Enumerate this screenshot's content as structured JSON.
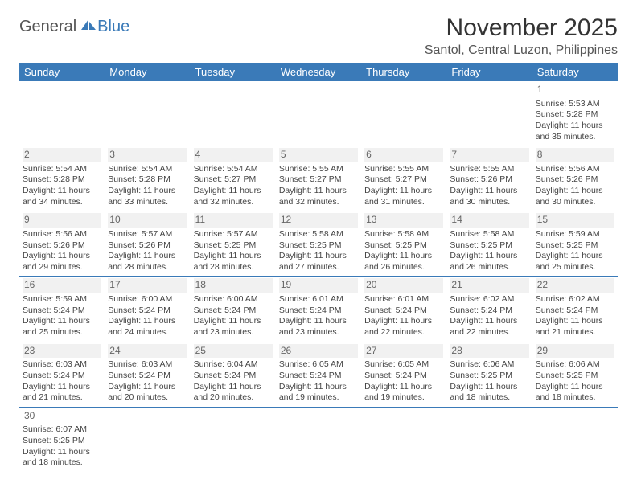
{
  "logo": {
    "general": "General",
    "blue": "Blue"
  },
  "title": "November 2025",
  "location": "Santol, Central Luzon, Philippines",
  "colors": {
    "header_bg": "#3a7ab8",
    "header_fg": "#ffffff",
    "text": "#444444",
    "daybg": "#f1f1f1"
  },
  "weekdays": [
    "Sunday",
    "Monday",
    "Tuesday",
    "Wednesday",
    "Thursday",
    "Friday",
    "Saturday"
  ],
  "weeks": [
    [
      null,
      null,
      null,
      null,
      null,
      null,
      {
        "n": "1",
        "sr": "Sunrise: 5:53 AM",
        "ss": "Sunset: 5:28 PM",
        "dl1": "Daylight: 11 hours",
        "dl2": "and 35 minutes.",
        "nobg": true
      }
    ],
    [
      {
        "n": "2",
        "sr": "Sunrise: 5:54 AM",
        "ss": "Sunset: 5:28 PM",
        "dl1": "Daylight: 11 hours",
        "dl2": "and 34 minutes."
      },
      {
        "n": "3",
        "sr": "Sunrise: 5:54 AM",
        "ss": "Sunset: 5:28 PM",
        "dl1": "Daylight: 11 hours",
        "dl2": "and 33 minutes."
      },
      {
        "n": "4",
        "sr": "Sunrise: 5:54 AM",
        "ss": "Sunset: 5:27 PM",
        "dl1": "Daylight: 11 hours",
        "dl2": "and 32 minutes."
      },
      {
        "n": "5",
        "sr": "Sunrise: 5:55 AM",
        "ss": "Sunset: 5:27 PM",
        "dl1": "Daylight: 11 hours",
        "dl2": "and 32 minutes."
      },
      {
        "n": "6",
        "sr": "Sunrise: 5:55 AM",
        "ss": "Sunset: 5:27 PM",
        "dl1": "Daylight: 11 hours",
        "dl2": "and 31 minutes."
      },
      {
        "n": "7",
        "sr": "Sunrise: 5:55 AM",
        "ss": "Sunset: 5:26 PM",
        "dl1": "Daylight: 11 hours",
        "dl2": "and 30 minutes."
      },
      {
        "n": "8",
        "sr": "Sunrise: 5:56 AM",
        "ss": "Sunset: 5:26 PM",
        "dl1": "Daylight: 11 hours",
        "dl2": "and 30 minutes."
      }
    ],
    [
      {
        "n": "9",
        "sr": "Sunrise: 5:56 AM",
        "ss": "Sunset: 5:26 PM",
        "dl1": "Daylight: 11 hours",
        "dl2": "and 29 minutes."
      },
      {
        "n": "10",
        "sr": "Sunrise: 5:57 AM",
        "ss": "Sunset: 5:26 PM",
        "dl1": "Daylight: 11 hours",
        "dl2": "and 28 minutes."
      },
      {
        "n": "11",
        "sr": "Sunrise: 5:57 AM",
        "ss": "Sunset: 5:25 PM",
        "dl1": "Daylight: 11 hours",
        "dl2": "and 28 minutes."
      },
      {
        "n": "12",
        "sr": "Sunrise: 5:58 AM",
        "ss": "Sunset: 5:25 PM",
        "dl1": "Daylight: 11 hours",
        "dl2": "and 27 minutes."
      },
      {
        "n": "13",
        "sr": "Sunrise: 5:58 AM",
        "ss": "Sunset: 5:25 PM",
        "dl1": "Daylight: 11 hours",
        "dl2": "and 26 minutes."
      },
      {
        "n": "14",
        "sr": "Sunrise: 5:58 AM",
        "ss": "Sunset: 5:25 PM",
        "dl1": "Daylight: 11 hours",
        "dl2": "and 26 minutes."
      },
      {
        "n": "15",
        "sr": "Sunrise: 5:59 AM",
        "ss": "Sunset: 5:25 PM",
        "dl1": "Daylight: 11 hours",
        "dl2": "and 25 minutes."
      }
    ],
    [
      {
        "n": "16",
        "sr": "Sunrise: 5:59 AM",
        "ss": "Sunset: 5:24 PM",
        "dl1": "Daylight: 11 hours",
        "dl2": "and 25 minutes."
      },
      {
        "n": "17",
        "sr": "Sunrise: 6:00 AM",
        "ss": "Sunset: 5:24 PM",
        "dl1": "Daylight: 11 hours",
        "dl2": "and 24 minutes."
      },
      {
        "n": "18",
        "sr": "Sunrise: 6:00 AM",
        "ss": "Sunset: 5:24 PM",
        "dl1": "Daylight: 11 hours",
        "dl2": "and 23 minutes."
      },
      {
        "n": "19",
        "sr": "Sunrise: 6:01 AM",
        "ss": "Sunset: 5:24 PM",
        "dl1": "Daylight: 11 hours",
        "dl2": "and 23 minutes."
      },
      {
        "n": "20",
        "sr": "Sunrise: 6:01 AM",
        "ss": "Sunset: 5:24 PM",
        "dl1": "Daylight: 11 hours",
        "dl2": "and 22 minutes."
      },
      {
        "n": "21",
        "sr": "Sunrise: 6:02 AM",
        "ss": "Sunset: 5:24 PM",
        "dl1": "Daylight: 11 hours",
        "dl2": "and 22 minutes."
      },
      {
        "n": "22",
        "sr": "Sunrise: 6:02 AM",
        "ss": "Sunset: 5:24 PM",
        "dl1": "Daylight: 11 hours",
        "dl2": "and 21 minutes."
      }
    ],
    [
      {
        "n": "23",
        "sr": "Sunrise: 6:03 AM",
        "ss": "Sunset: 5:24 PM",
        "dl1": "Daylight: 11 hours",
        "dl2": "and 21 minutes."
      },
      {
        "n": "24",
        "sr": "Sunrise: 6:03 AM",
        "ss": "Sunset: 5:24 PM",
        "dl1": "Daylight: 11 hours",
        "dl2": "and 20 minutes."
      },
      {
        "n": "25",
        "sr": "Sunrise: 6:04 AM",
        "ss": "Sunset: 5:24 PM",
        "dl1": "Daylight: 11 hours",
        "dl2": "and 20 minutes."
      },
      {
        "n": "26",
        "sr": "Sunrise: 6:05 AM",
        "ss": "Sunset: 5:24 PM",
        "dl1": "Daylight: 11 hours",
        "dl2": "and 19 minutes."
      },
      {
        "n": "27",
        "sr": "Sunrise: 6:05 AM",
        "ss": "Sunset: 5:24 PM",
        "dl1": "Daylight: 11 hours",
        "dl2": "and 19 minutes."
      },
      {
        "n": "28",
        "sr": "Sunrise: 6:06 AM",
        "ss": "Sunset: 5:25 PM",
        "dl1": "Daylight: 11 hours",
        "dl2": "and 18 minutes."
      },
      {
        "n": "29",
        "sr": "Sunrise: 6:06 AM",
        "ss": "Sunset: 5:25 PM",
        "dl1": "Daylight: 11 hours",
        "dl2": "and 18 minutes."
      }
    ],
    [
      {
        "n": "30",
        "sr": "Sunrise: 6:07 AM",
        "ss": "Sunset: 5:25 PM",
        "dl1": "Daylight: 11 hours",
        "dl2": "and 18 minutes.",
        "nobg": true
      },
      null,
      null,
      null,
      null,
      null,
      null
    ]
  ]
}
